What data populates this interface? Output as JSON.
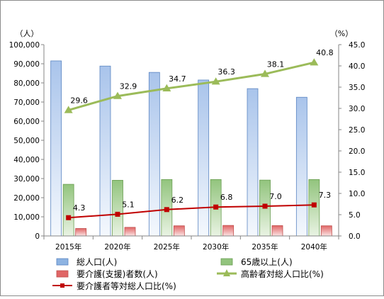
{
  "chart_data": {
    "type": "bar",
    "categories": [
      "2015年",
      "2020年",
      "2025年",
      "2030年",
      "2035年",
      "2040年"
    ],
    "left_axis": {
      "unit_label": "（人）",
      "ylim": [
        0,
        100000
      ],
      "ticks": [
        "0",
        "10,000",
        "20,000",
        "30,000",
        "40,000",
        "50,000",
        "60,000",
        "70,000",
        "80,000",
        "90,000",
        "100,000"
      ]
    },
    "right_axis": {
      "unit_label": "（%）",
      "ylim": [
        0,
        45
      ],
      "ticks": [
        "0.0",
        "5.0",
        "10.0",
        "15.0",
        "20.0",
        "25.0",
        "30.0",
        "35.0",
        "40.0",
        "45.0"
      ]
    },
    "series": [
      {
        "name": "総人口(人)",
        "type": "bar",
        "axis": "left",
        "color": "#8db3e2",
        "values": [
          91500,
          88800,
          85500,
          81500,
          77000,
          72500
        ]
      },
      {
        "name": "65歳以上(人)",
        "type": "bar",
        "axis": "left",
        "color": "#92c47d",
        "values": [
          27000,
          29100,
          29500,
          29500,
          29200,
          29500
        ]
      },
      {
        "name": "要介護(支援)者数(人)",
        "type": "bar",
        "axis": "left",
        "color": "#e06666",
        "values": [
          3900,
          4500,
          5300,
          5500,
          5400,
          5300
        ]
      },
      {
        "name": "高齢者対総人口比(%)",
        "type": "line",
        "axis": "right",
        "color": "#9bbb59",
        "marker": "triangle",
        "values": [
          29.6,
          32.9,
          34.7,
          36.3,
          38.1,
          40.8
        ],
        "labels": [
          "29.6",
          "32.9",
          "34.7",
          "36.3",
          "38.1",
          "40.8"
        ]
      },
      {
        "name": "要介護者等対総人口比(%)",
        "type": "line",
        "axis": "right",
        "color": "#c00000",
        "marker": "square",
        "values": [
          4.3,
          5.1,
          6.2,
          6.8,
          7.0,
          7.3
        ],
        "labels": [
          "4.3",
          "5.1",
          "6.2",
          "6.8",
          "7.0",
          "7.3"
        ]
      }
    ],
    "grid": false,
    "legend_position": "bottom"
  }
}
